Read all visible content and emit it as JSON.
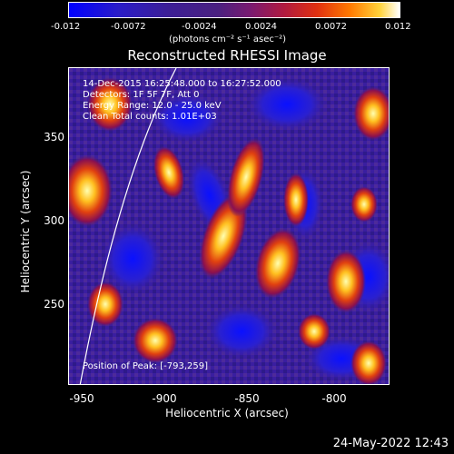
{
  "colorbar": {
    "ticks": [
      "-0.012",
      "-0.0072",
      "-0.0024",
      "0.0024",
      "0.0072",
      "0.012"
    ],
    "unit_label": "(photons cm⁻² s⁻¹ asec⁻²)"
  },
  "plot": {
    "title": "Reconstructed RHESSI Image",
    "annotations": [
      "14-Dec-2015 16:25:48.000 to 16:27:52.000",
      "Detectors: 1F 5F 7F, Att 0",
      "Energy Range: 12.0 - 25.0 keV",
      "Clean      Total counts: 1.01E+03"
    ],
    "peak_label": "Position of Peak: [-793,259]",
    "x_label": "Heliocentric X (arcsec)",
    "y_label": "Heliocentric Y (arcsec)",
    "x_ticks": [
      "-950",
      "-900",
      "-850",
      "-800"
    ],
    "y_ticks": [
      "350",
      "300",
      "250"
    ]
  },
  "footer": {
    "timestamp": "24-May-2022 12:43"
  }
}
